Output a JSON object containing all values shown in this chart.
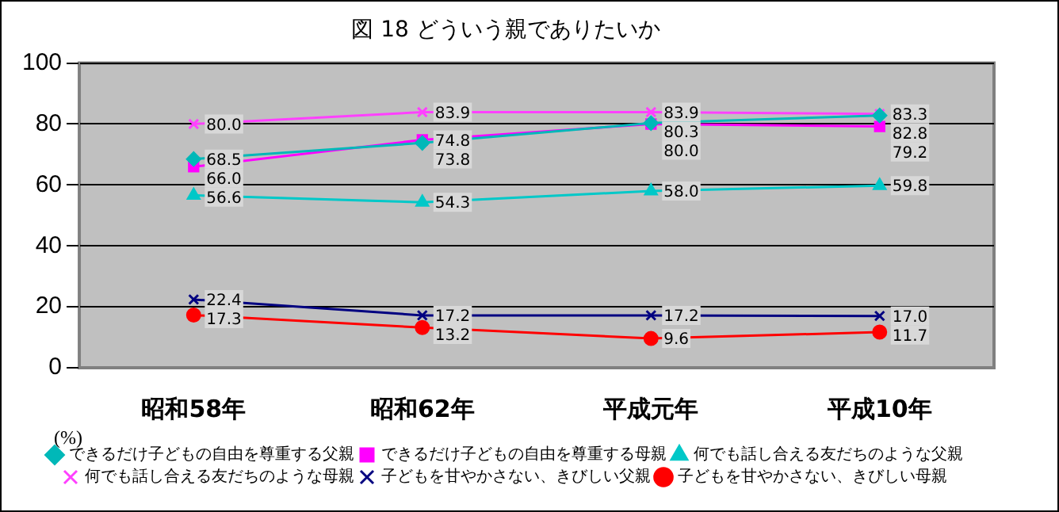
{
  "chart_data": {
    "type": "line",
    "title": "図 18 どういう親でありたいか",
    "ylabel": "(%)",
    "categories": [
      "昭和58年",
      "昭和62年",
      "平成元年",
      "平成10年"
    ],
    "series": [
      {
        "name": "できるだけ子どもの自由を尊重する父親",
        "color": "#00b8b8",
        "marker": "diamond",
        "values": [
          68.5,
          73.8,
          80.3,
          82.8
        ],
        "value_labels": [
          "68.5",
          "73.8",
          "80.3",
          "82.8"
        ]
      },
      {
        "name": "できるだけ子どもの自由を尊重する母親",
        "color": "#ff00ff",
        "marker": "square",
        "values": [
          66.0,
          74.8,
          80.0,
          79.2
        ],
        "value_labels": [
          "66.0",
          "74.8",
          "80.0",
          "79.2"
        ]
      },
      {
        "name": "何でも話し合える友だちのような父親",
        "color": "#00c8c8",
        "marker": "triangle",
        "values": [
          56.6,
          54.3,
          58.0,
          59.8
        ],
        "value_labels": [
          "56.6",
          "54.3",
          "58.0",
          "59.8"
        ]
      },
      {
        "name": "何でも話し合える友だちのような母親",
        "color": "#ff40ff",
        "marker": "cross",
        "values": [
          80.0,
          83.9,
          83.9,
          83.3
        ],
        "value_labels": [
          "80.0",
          "83.9",
          "83.9",
          "83.3"
        ]
      },
      {
        "name": "子どもを甘やかさない、きびしい父親",
        "color": "#000080",
        "marker": "cross",
        "values": [
          22.4,
          17.2,
          17.2,
          17.0
        ],
        "value_labels": [
          "22.4",
          "17.2",
          "17.2",
          "17.0"
        ]
      },
      {
        "name": "子どもを甘やかさない、きびしい母親",
        "color": "#ff0000",
        "marker": "circle",
        "values": [
          17.3,
          13.2,
          9.6,
          11.7
        ],
        "value_labels": [
          "17.3",
          "13.2",
          "9.6",
          "11.7"
        ]
      }
    ],
    "ylim": [
      0,
      100
    ],
    "yticks": [
      0,
      20,
      40,
      60,
      80,
      100
    ],
    "grid": "y",
    "legend": "bottom"
  }
}
